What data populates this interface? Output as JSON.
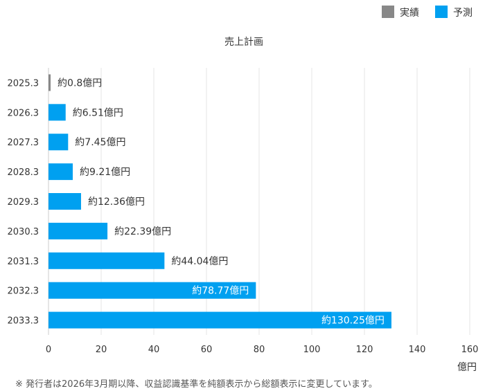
{
  "chart_data": {
    "type": "bar",
    "orientation": "horizontal",
    "title": "売上計画",
    "categories": [
      "2025.3",
      "2026.3",
      "2027.3",
      "2028.3",
      "2029.3",
      "2030.3",
      "2031.3",
      "2032.3",
      "2033.3"
    ],
    "values": [
      0.8,
      6.51,
      7.45,
      9.21,
      12.36,
      22.39,
      44.04,
      78.77,
      130.25
    ],
    "data_labels": [
      "約0.8億円",
      "約6.51億円",
      "約7.45億円",
      "約9.21億円",
      "約12.36億円",
      "約22.39億円",
      "約44.04億円",
      "約78.77億円",
      "約130.25億円"
    ],
    "series_type": [
      "実績",
      "予測",
      "予測",
      "予測",
      "予測",
      "予測",
      "予測",
      "予測",
      "予測"
    ],
    "legend": [
      {
        "name": "実績",
        "color": "#888888"
      },
      {
        "name": "予測",
        "color": "#00a0f0"
      }
    ],
    "legend_position": "top-right",
    "xlim": [
      0,
      160
    ],
    "xticks": [
      0,
      20,
      40,
      60,
      80,
      100,
      120,
      140,
      160
    ],
    "xlabel": "億円",
    "grid": true
  },
  "footnote": "※ 発行者は2026年3月期以降、収益認識基準を純額表示から総額表示に変更しています。"
}
